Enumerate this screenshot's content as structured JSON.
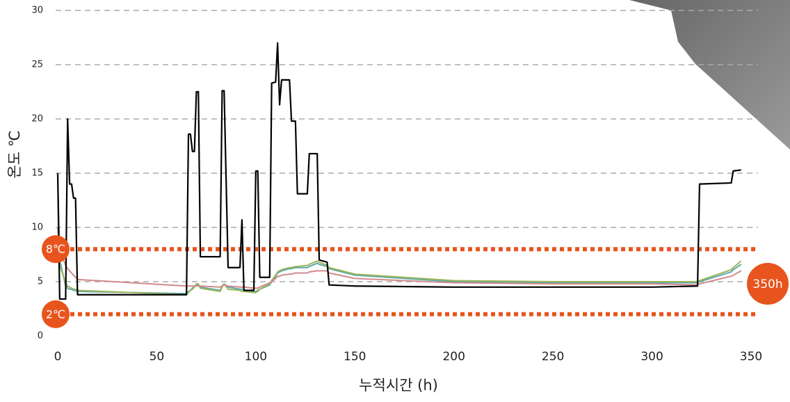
{
  "chart_data": {
    "type": "line",
    "xlabel": "누적시간 (h)",
    "ylabel": "온도 ℃",
    "x": [
      0,
      1,
      4,
      5,
      6,
      7,
      8,
      9,
      10,
      65,
      66,
      67,
      68,
      69,
      70,
      71,
      72,
      82,
      83,
      84,
      86,
      92,
      93,
      94,
      99,
      100,
      101,
      102,
      107,
      108,
      110,
      111,
      112,
      113,
      117,
      118,
      120,
      121,
      126,
      127,
      131,
      132,
      136,
      137,
      150,
      200,
      250,
      300,
      323,
      324,
      340,
      341,
      345
    ],
    "series": [
      {
        "color": "#5aa9a8",
        "values": [
          14.8,
          7,
          4.6,
          4.4,
          4.3,
          4.3,
          4.2,
          4.2,
          4.1,
          3.9,
          4.1,
          4.2,
          4.4,
          4.6,
          4.7,
          4.7,
          4.5,
          4.2,
          4.6,
          4.8,
          4.5,
          4.3,
          4.3,
          4.2,
          4.1,
          4.1,
          4.2,
          4.3,
          4.7,
          5,
          5.5,
          5.8,
          5.9,
          6,
          6.2,
          6.2,
          6.3,
          6.3,
          6.3,
          6.4,
          6.7,
          6.6,
          6.4,
          6.2,
          5.6,
          5,
          4.9,
          4.9,
          4.9,
          5,
          5.9,
          6.1,
          6.6
        ]
      },
      {
        "color": "#9bb55a",
        "values": [
          14.5,
          6.5,
          4.9,
          4.6,
          4.5,
          4.4,
          4.3,
          4.3,
          4.2,
          3.8,
          4,
          4.2,
          4.3,
          4.5,
          4.8,
          4.8,
          4.4,
          4.1,
          4.5,
          4.8,
          4.3,
          4.2,
          4.1,
          4.1,
          4,
          4,
          4.1,
          4.3,
          4.8,
          5.1,
          5.6,
          5.9,
          6,
          6.1,
          6.3,
          6.3,
          6.4,
          6.4,
          6.5,
          6.6,
          6.9,
          6.8,
          6.5,
          6.3,
          5.7,
          5.1,
          5,
          5,
          5,
          5.1,
          6.1,
          6.3,
          6.9
        ]
      },
      {
        "color": "#d18a8c",
        "values": [
          10,
          8,
          6.5,
          6.2,
          6,
          5.8,
          5.6,
          5.4,
          5.2,
          4.6,
          4.6,
          4.6,
          4.6,
          4.6,
          4.6,
          4.6,
          4.6,
          4.5,
          4.6,
          4.7,
          4.6,
          4.5,
          4.5,
          4.5,
          4.4,
          4.4,
          4.4,
          4.5,
          4.9,
          5,
          5.3,
          5.5,
          5.5,
          5.6,
          5.7,
          5.7,
          5.8,
          5.8,
          5.8,
          5.9,
          6,
          6,
          6,
          5.8,
          5.3,
          4.9,
          4.8,
          4.8,
          4.7,
          4.8,
          5.5,
          5.6,
          6
        ]
      },
      {
        "color": "#000000",
        "values": [
          15,
          3.4,
          3.4,
          20,
          14,
          14,
          12.7,
          12.7,
          3.8,
          3.8,
          18.6,
          18.6,
          17,
          17,
          22.5,
          22.5,
          7.3,
          7.3,
          22.6,
          22.6,
          6.3,
          6.3,
          10.7,
          4.2,
          4.2,
          15.2,
          15.2,
          5.4,
          5.4,
          23.3,
          23.4,
          27,
          21.3,
          23.6,
          23.6,
          19.8,
          19.8,
          13.1,
          13.1,
          16.8,
          16.8,
          7,
          6.8,
          4.7,
          4.6,
          4.5,
          4.5,
          4.5,
          4.6,
          14,
          14.1,
          15.2,
          15.3
        ]
      }
    ],
    "thresholds": [
      {
        "value": 8,
        "label": "8℃",
        "color": "#e8541e"
      },
      {
        "value": 2,
        "label": "2℃",
        "color": "#e8541e"
      }
    ],
    "end_marker": {
      "value": 350,
      "label": "350h",
      "color": "#e8541e"
    },
    "xlim": [
      0,
      350
    ],
    "xticks": [
      0,
      50,
      100,
      150,
      200,
      250,
      300,
      350
    ],
    "ylim": [
      0,
      30
    ],
    "yticks": [
      0,
      5,
      10,
      15,
      20,
      25,
      30
    ],
    "grid": true
  }
}
